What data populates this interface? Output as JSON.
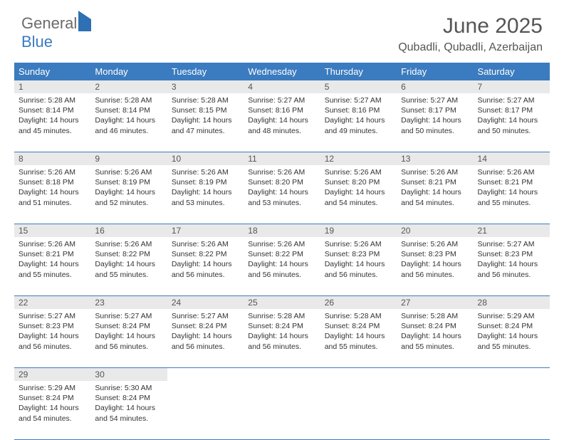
{
  "logo": {
    "part1": "General",
    "part2": "Blue"
  },
  "title": "June 2025",
  "location": "Qubadli, Qubadli, Azerbaijan",
  "colors": {
    "header_bg": "#3b7bbf",
    "daynum_bg": "#e9e9e9",
    "text": "#333333"
  },
  "dayNames": [
    "Sunday",
    "Monday",
    "Tuesday",
    "Wednesday",
    "Thursday",
    "Friday",
    "Saturday"
  ],
  "weeks": [
    [
      {
        "n": "1",
        "sr": "Sunrise: 5:28 AM",
        "ss": "Sunset: 8:14 PM",
        "d1": "Daylight: 14 hours",
        "d2": "and 45 minutes."
      },
      {
        "n": "2",
        "sr": "Sunrise: 5:28 AM",
        "ss": "Sunset: 8:14 PM",
        "d1": "Daylight: 14 hours",
        "d2": "and 46 minutes."
      },
      {
        "n": "3",
        "sr": "Sunrise: 5:28 AM",
        "ss": "Sunset: 8:15 PM",
        "d1": "Daylight: 14 hours",
        "d2": "and 47 minutes."
      },
      {
        "n": "4",
        "sr": "Sunrise: 5:27 AM",
        "ss": "Sunset: 8:16 PM",
        "d1": "Daylight: 14 hours",
        "d2": "and 48 minutes."
      },
      {
        "n": "5",
        "sr": "Sunrise: 5:27 AM",
        "ss": "Sunset: 8:16 PM",
        "d1": "Daylight: 14 hours",
        "d2": "and 49 minutes."
      },
      {
        "n": "6",
        "sr": "Sunrise: 5:27 AM",
        "ss": "Sunset: 8:17 PM",
        "d1": "Daylight: 14 hours",
        "d2": "and 50 minutes."
      },
      {
        "n": "7",
        "sr": "Sunrise: 5:27 AM",
        "ss": "Sunset: 8:17 PM",
        "d1": "Daylight: 14 hours",
        "d2": "and 50 minutes."
      }
    ],
    [
      {
        "n": "8",
        "sr": "Sunrise: 5:26 AM",
        "ss": "Sunset: 8:18 PM",
        "d1": "Daylight: 14 hours",
        "d2": "and 51 minutes."
      },
      {
        "n": "9",
        "sr": "Sunrise: 5:26 AM",
        "ss": "Sunset: 8:19 PM",
        "d1": "Daylight: 14 hours",
        "d2": "and 52 minutes."
      },
      {
        "n": "10",
        "sr": "Sunrise: 5:26 AM",
        "ss": "Sunset: 8:19 PM",
        "d1": "Daylight: 14 hours",
        "d2": "and 53 minutes."
      },
      {
        "n": "11",
        "sr": "Sunrise: 5:26 AM",
        "ss": "Sunset: 8:20 PM",
        "d1": "Daylight: 14 hours",
        "d2": "and 53 minutes."
      },
      {
        "n": "12",
        "sr": "Sunrise: 5:26 AM",
        "ss": "Sunset: 8:20 PM",
        "d1": "Daylight: 14 hours",
        "d2": "and 54 minutes."
      },
      {
        "n": "13",
        "sr": "Sunrise: 5:26 AM",
        "ss": "Sunset: 8:21 PM",
        "d1": "Daylight: 14 hours",
        "d2": "and 54 minutes."
      },
      {
        "n": "14",
        "sr": "Sunrise: 5:26 AM",
        "ss": "Sunset: 8:21 PM",
        "d1": "Daylight: 14 hours",
        "d2": "and 55 minutes."
      }
    ],
    [
      {
        "n": "15",
        "sr": "Sunrise: 5:26 AM",
        "ss": "Sunset: 8:21 PM",
        "d1": "Daylight: 14 hours",
        "d2": "and 55 minutes."
      },
      {
        "n": "16",
        "sr": "Sunrise: 5:26 AM",
        "ss": "Sunset: 8:22 PM",
        "d1": "Daylight: 14 hours",
        "d2": "and 55 minutes."
      },
      {
        "n": "17",
        "sr": "Sunrise: 5:26 AM",
        "ss": "Sunset: 8:22 PM",
        "d1": "Daylight: 14 hours",
        "d2": "and 56 minutes."
      },
      {
        "n": "18",
        "sr": "Sunrise: 5:26 AM",
        "ss": "Sunset: 8:22 PM",
        "d1": "Daylight: 14 hours",
        "d2": "and 56 minutes."
      },
      {
        "n": "19",
        "sr": "Sunrise: 5:26 AM",
        "ss": "Sunset: 8:23 PM",
        "d1": "Daylight: 14 hours",
        "d2": "and 56 minutes."
      },
      {
        "n": "20",
        "sr": "Sunrise: 5:26 AM",
        "ss": "Sunset: 8:23 PM",
        "d1": "Daylight: 14 hours",
        "d2": "and 56 minutes."
      },
      {
        "n": "21",
        "sr": "Sunrise: 5:27 AM",
        "ss": "Sunset: 8:23 PM",
        "d1": "Daylight: 14 hours",
        "d2": "and 56 minutes."
      }
    ],
    [
      {
        "n": "22",
        "sr": "Sunrise: 5:27 AM",
        "ss": "Sunset: 8:23 PM",
        "d1": "Daylight: 14 hours",
        "d2": "and 56 minutes."
      },
      {
        "n": "23",
        "sr": "Sunrise: 5:27 AM",
        "ss": "Sunset: 8:24 PM",
        "d1": "Daylight: 14 hours",
        "d2": "and 56 minutes."
      },
      {
        "n": "24",
        "sr": "Sunrise: 5:27 AM",
        "ss": "Sunset: 8:24 PM",
        "d1": "Daylight: 14 hours",
        "d2": "and 56 minutes."
      },
      {
        "n": "25",
        "sr": "Sunrise: 5:28 AM",
        "ss": "Sunset: 8:24 PM",
        "d1": "Daylight: 14 hours",
        "d2": "and 56 minutes."
      },
      {
        "n": "26",
        "sr": "Sunrise: 5:28 AM",
        "ss": "Sunset: 8:24 PM",
        "d1": "Daylight: 14 hours",
        "d2": "and 55 minutes."
      },
      {
        "n": "27",
        "sr": "Sunrise: 5:28 AM",
        "ss": "Sunset: 8:24 PM",
        "d1": "Daylight: 14 hours",
        "d2": "and 55 minutes."
      },
      {
        "n": "28",
        "sr": "Sunrise: 5:29 AM",
        "ss": "Sunset: 8:24 PM",
        "d1": "Daylight: 14 hours",
        "d2": "and 55 minutes."
      }
    ],
    [
      {
        "n": "29",
        "sr": "Sunrise: 5:29 AM",
        "ss": "Sunset: 8:24 PM",
        "d1": "Daylight: 14 hours",
        "d2": "and 54 minutes."
      },
      {
        "n": "30",
        "sr": "Sunrise: 5:30 AM",
        "ss": "Sunset: 8:24 PM",
        "d1": "Daylight: 14 hours",
        "d2": "and 54 minutes."
      },
      null,
      null,
      null,
      null,
      null
    ]
  ]
}
